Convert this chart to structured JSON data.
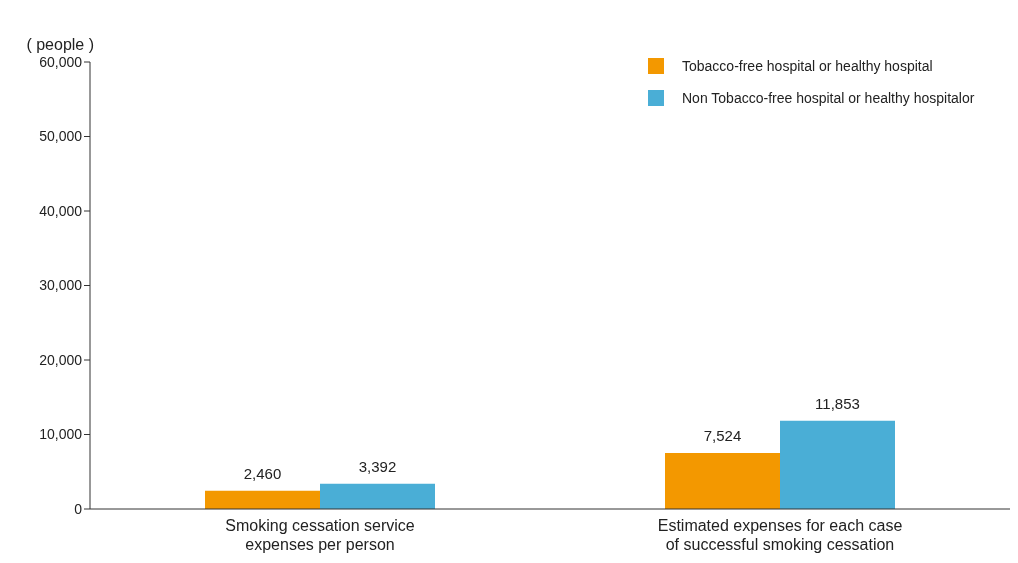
{
  "chart_data": {
    "type": "bar",
    "ylabel": "( people )",
    "categories": [
      "Smoking cessation service expenses per person",
      "Estimated expenses for each case of successful smoking cessation"
    ],
    "series": [
      {
        "name": "Tobacco-free hospital or healthy hospital",
        "color": "#f39800",
        "values": [
          2460,
          7524
        ],
        "value_labels": [
          "2,460",
          "7,524"
        ]
      },
      {
        "name": "Non Tobacco-free hospital or healthy hospitalor",
        "color": "#4aaed6",
        "values": [
          3392,
          11853
        ],
        "value_labels": [
          "3,392",
          "11,853"
        ]
      }
    ],
    "ylim": [
      0,
      60000
    ],
    "yticks": [
      {
        "value": 0,
        "label": "0"
      },
      {
        "value": 10000,
        "label": "10,000"
      },
      {
        "value": 20000,
        "label": "20,000"
      },
      {
        "value": 30000,
        "label": "30,000"
      },
      {
        "value": 40000,
        "label": "40,000"
      },
      {
        "value": 50000,
        "label": "50,000"
      },
      {
        "value": 60000,
        "label": "60,000"
      }
    ],
    "grid": false,
    "legend": "top right"
  }
}
